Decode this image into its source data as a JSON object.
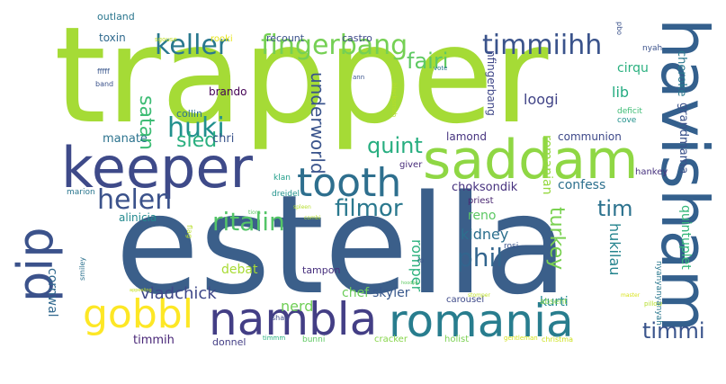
{
  "words": [
    {
      "text": "estella",
      "color": "#3b5f8a"
    },
    {
      "text": "trapper",
      "color": "#a5db36"
    },
    {
      "text": "keeper",
      "color": "#3e4a89"
    },
    {
      "text": "saddam",
      "color": "#8fd744"
    },
    {
      "text": "havisham",
      "color": "#34608d"
    },
    {
      "text": "nambla",
      "color": "#433e85"
    },
    {
      "text": "romania",
      "color": "#287d8e"
    },
    {
      "text": "tooth",
      "color": "#2e6f8e"
    },
    {
      "text": "gobbl",
      "color": "#fde725"
    },
    {
      "text": "pip",
      "color": "#3b528b"
    },
    {
      "text": "keller",
      "color": "#29788e"
    },
    {
      "text": "fingerbang",
      "color": "#75d054"
    },
    {
      "text": "timmiihh",
      "color": "#3a538b"
    },
    {
      "text": "fairi",
      "color": "#5ec962"
    },
    {
      "text": "helen",
      "color": "#3b528b"
    },
    {
      "text": "ritalin",
      "color": "#54c568"
    },
    {
      "text": "filmor",
      "color": "#2a788e"
    },
    {
      "text": "huki",
      "color": "#21908d"
    },
    {
      "text": "sled",
      "color": "#29af7f"
    },
    {
      "text": "satan",
      "color": "#3dbc74"
    },
    {
      "text": "quint",
      "color": "#28ae80"
    },
    {
      "text": "underworld",
      "color": "#3a548c"
    },
    {
      "text": "tim",
      "color": "#2c728e"
    },
    {
      "text": "timmi",
      "color": "#3a548c"
    },
    {
      "text": "phil",
      "color": "#32658e"
    },
    {
      "text": "turkey",
      "color": "#7ad151"
    },
    {
      "text": "kidney",
      "color": "#2d708e"
    },
    {
      "text": "romper",
      "color": "#2db27d"
    },
    {
      "text": "chef",
      "color": "#6ccd5a"
    },
    {
      "text": "nerd",
      "color": "#70cf57"
    },
    {
      "text": "vladchick",
      "color": "#3f4889"
    },
    {
      "text": "tampon",
      "color": "#472f7d"
    },
    {
      "text": "debat",
      "color": "#a8db34"
    },
    {
      "text": "skyler",
      "color": "#38588c"
    },
    {
      "text": "kurti",
      "color": "#23888e"
    },
    {
      "text": "cornwal",
      "color": "#31688e"
    },
    {
      "text": "timmih",
      "color": "#482677"
    },
    {
      "text": "donnel",
      "color": "#433e85"
    },
    {
      "text": "hukilau",
      "color": "#25848e"
    },
    {
      "text": "quintuplet",
      "color": "#35b779"
    },
    {
      "text": "grandmama",
      "color": "#3b528b"
    },
    {
      "text": "cheroke",
      "color": "#2a788e"
    },
    {
      "text": "lib",
      "color": "#25ac82"
    },
    {
      "text": "loogi",
      "color": "#414487"
    },
    {
      "text": "romanian",
      "color": "#95d840"
    },
    {
      "text": "nfingerbang",
      "color": "#3f4788"
    },
    {
      "text": "communion",
      "color": "#3e4989"
    },
    {
      "text": "lamond",
      "color": "#46337f"
    },
    {
      "text": "cirqu",
      "color": "#2ab07f"
    },
    {
      "text": "choksondik",
      "color": "#46317e"
    },
    {
      "text": "confess",
      "color": "#2d708e"
    },
    {
      "text": "reno",
      "color": "#5cc863"
    },
    {
      "text": "priest",
      "color": "#4a2872"
    },
    {
      "text": "giver",
      "color": "#472c7a"
    },
    {
      "text": "hankey",
      "color": "#46317e"
    },
    {
      "text": "manate",
      "color": "#2c738e"
    },
    {
      "text": "chri",
      "color": "#3a548c"
    },
    {
      "text": "collin",
      "color": "#2c738e"
    },
    {
      "text": "brando",
      "color": "#440154"
    },
    {
      "text": "toxin",
      "color": "#306a8e"
    },
    {
      "text": "outland",
      "color": "#2a768e"
    },
    {
      "text": "alinicia",
      "color": "#23898e"
    },
    {
      "text": "marion",
      "color": "#2a768e"
    },
    {
      "text": "klan",
      "color": "#1f9e89"
    },
    {
      "text": "dreidel",
      "color": "#20928c"
    },
    {
      "text": "flag",
      "color": "#b8de29"
    },
    {
      "text": "smiley",
      "color": "#2c718e"
    },
    {
      "text": "carousel",
      "color": "#3e4a89"
    },
    {
      "text": "absent",
      "color": "#7fd34e"
    },
    {
      "text": "shay",
      "color": "#3e4c8a"
    },
    {
      "text": "holist",
      "color": "#7ad151"
    },
    {
      "text": "cracker",
      "color": "#86d549"
    },
    {
      "text": "bunni",
      "color": "#5ec962"
    },
    {
      "text": "timmm",
      "color": "#2ab07f"
    },
    {
      "text": "gentleman",
      "color": "#d2e21b"
    },
    {
      "text": "christma",
      "color": "#cde11d"
    },
    {
      "text": "pillow",
      "color": "#b5de2b"
    },
    {
      "text": "master",
      "color": "#d8e219"
    },
    {
      "text": "stomper",
      "color": "#bddf26"
    },
    {
      "text": "nyanyanyanyah",
      "color": "#2a788e"
    },
    {
      "text": "rosi",
      "color": "#3a548c"
    },
    {
      "text": "io",
      "color": "#3b528b"
    },
    {
      "text": "hoodoo",
      "color": "#5ec962"
    },
    {
      "text": "deficit",
      "color": "#3dbc74"
    },
    {
      "text": "cove",
      "color": "#21918c"
    },
    {
      "text": "recount",
      "color": "#3b528b"
    },
    {
      "text": "castro",
      "color": "#3e4989"
    },
    {
      "text": "rooki",
      "color": "#e5e419"
    },
    {
      "text": "sgouse",
      "color": "#c2df23"
    },
    {
      "text": "vote",
      "color": "#2a788e"
    },
    {
      "text": "nyah",
      "color": "#3b528b"
    },
    {
      "text": "pbo",
      "color": "#3b528b"
    },
    {
      "text": "ann",
      "color": "#3a548c"
    },
    {
      "text": "blacksmith",
      "color": "#b5de2b"
    },
    {
      "text": "band",
      "color": "#3b528b"
    },
    {
      "text": "fffff",
      "color": "#39568c"
    },
    {
      "text": "tiora",
      "color": "#5ec962"
    },
    {
      "text": "spleen",
      "color": "#b5de2b"
    },
    {
      "text": "combi",
      "color": "#b5de2b"
    },
    {
      "text": "appealing",
      "color": "#c5e021"
    }
  ]
}
